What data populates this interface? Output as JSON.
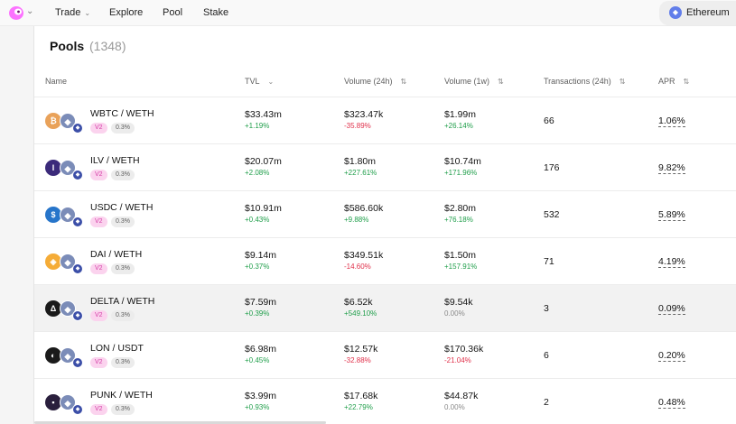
{
  "nav": {
    "items": [
      {
        "label": "Trade",
        "has_dropdown": true
      },
      {
        "label": "Explore",
        "has_dropdown": false
      },
      {
        "label": "Pool",
        "has_dropdown": false
      },
      {
        "label": "Stake",
        "has_dropdown": false
      }
    ],
    "chain_label": "Ethereum",
    "logo_icon": "uniswap-logo-icon"
  },
  "page": {
    "title": "Pools",
    "count": "(1348)"
  },
  "table": {
    "headers": {
      "name": "Name",
      "tvl": "TVL",
      "volume_24h": "Volume (24h)",
      "volume_1w": "Volume (1w)",
      "transactions_24h": "Transactions (24h)",
      "apr": "APR"
    },
    "rows": [
      {
        "pair": "WBTC / WETH",
        "version": "V2",
        "fee": "0.3%",
        "token_icon_color": "#e9a25a",
        "token_icon_glyph": "₿",
        "tvl": "$33.43m",
        "tvl_change": "+1.19%",
        "vol24": "$323.47k",
        "vol24_change": "-35.89%",
        "vol1w": "$1.99m",
        "vol1w_change": "+26.14%",
        "tx": "66",
        "apr": "1.06%"
      },
      {
        "pair": "ILV / WETH",
        "version": "V2",
        "fee": "0.3%",
        "token_icon_color": "#3b2a7a",
        "token_icon_glyph": "I",
        "tvl": "$20.07m",
        "tvl_change": "+2.08%",
        "vol24": "$1.80m",
        "vol24_change": "+227.61%",
        "vol1w": "$10.74m",
        "vol1w_change": "+171.96%",
        "tx": "176",
        "apr": "9.82%"
      },
      {
        "pair": "USDC / WETH",
        "version": "V2",
        "fee": "0.3%",
        "token_icon_color": "#2775ca",
        "token_icon_glyph": "$",
        "tvl": "$10.91m",
        "tvl_change": "+0.43%",
        "vol24": "$586.60k",
        "vol24_change": "+9.88%",
        "vol1w": "$2.80m",
        "vol1w_change": "+76.18%",
        "tx": "532",
        "apr": "5.89%"
      },
      {
        "pair": "DAI / WETH",
        "version": "V2",
        "fee": "0.3%",
        "token_icon_color": "#f5ac37",
        "token_icon_glyph": "◈",
        "tvl": "$9.14m",
        "tvl_change": "+0.37%",
        "vol24": "$349.51k",
        "vol24_change": "-14.60%",
        "vol1w": "$1.50m",
        "vol1w_change": "+157.91%",
        "tx": "71",
        "apr": "4.19%"
      },
      {
        "pair": "DELTA / WETH",
        "version": "V2",
        "fee": "0.3%",
        "token_icon_color": "#1a1a1a",
        "token_icon_glyph": "Δ",
        "tvl": "$7.59m",
        "tvl_change": "+0.39%",
        "vol24": "$6.52k",
        "vol24_change": "+549.10%",
        "vol1w": "$9.54k",
        "vol1w_change": "0.00%",
        "tx": "3",
        "apr": "0.09%"
      },
      {
        "pair": "LON / USDT",
        "version": "V2",
        "fee": "0.3%",
        "token_icon_color": "#1a1a1a",
        "token_icon_glyph": "◐",
        "tvl": "$6.98m",
        "tvl_change": "+0.45%",
        "vol24": "$12.57k",
        "vol24_change": "-32.88%",
        "vol1w": "$170.36k",
        "vol1w_change": "-21.04%",
        "tx": "6",
        "apr": "0.20%"
      },
      {
        "pair": "PUNK / WETH",
        "version": "V2",
        "fee": "0.3%",
        "token_icon_color": "#2a1f3d",
        "token_icon_glyph": "▪",
        "tvl": "$3.99m",
        "tvl_change": "+0.93%",
        "vol24": "$17.68k",
        "vol24_change": "+22.79%",
        "vol1w": "$44.87k",
        "vol1w_change": "0.00%",
        "tx": "2",
        "apr": "0.48%"
      }
    ]
  },
  "colors": {
    "positive": "#1f9e4a",
    "negative": "#e0314b",
    "neutral": "#8a8a8a",
    "version_pill": "#fbd3ee",
    "ethereum": "#627eea"
  }
}
